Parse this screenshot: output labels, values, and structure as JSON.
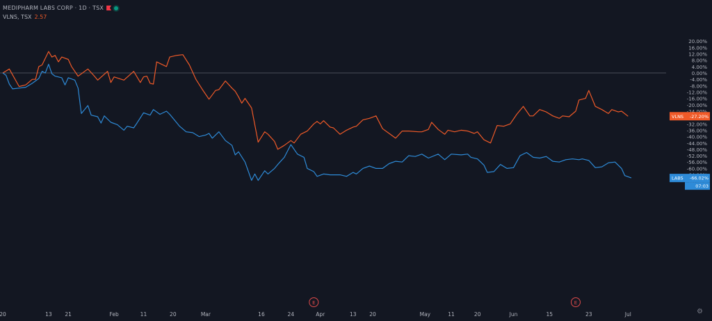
{
  "legend": {
    "title": "MEDIPHARM LABS CORP · 1D · TSX",
    "compare_symbol": "VLNS, TSX",
    "compare_value": "2.57"
  },
  "colors": {
    "background": "#131722",
    "labs": "#2e8bd8",
    "vlns": "#f05a28",
    "axis_text": "#b2b5be",
    "zero_line": "#5d606b"
  },
  "chart_data": {
    "type": "line",
    "title": "",
    "xlabel": "",
    "ylabel": "",
    "ylim": [
      -74,
      22
    ],
    "y_ticks": [
      20,
      16,
      12,
      8,
      4,
      0,
      -4,
      -8,
      -12,
      -16,
      -20,
      -24,
      -28,
      -32,
      -36,
      -40,
      -44,
      -48,
      -52,
      -56,
      -60,
      -64,
      -68,
      -72
    ],
    "x_ticks": [
      "20",
      "13",
      "21",
      "Feb",
      "11",
      "20",
      "Mar",
      "16",
      "24",
      "Apr",
      "13",
      "20",
      "May",
      "11",
      "20",
      "Jun",
      "15",
      "23",
      "Jul"
    ],
    "x_tick_index": [
      0,
      14,
      20,
      34,
      43,
      52,
      62,
      79,
      88,
      97,
      107,
      113,
      129,
      137,
      145,
      156,
      167,
      179,
      191
    ],
    "zero_line": 0,
    "events": [
      {
        "label": "E",
        "index": 95
      },
      {
        "label": "E",
        "index": 175
      }
    ],
    "last_value_badges": {
      "VLNS": {
        "label": "VLNS",
        "value": "-27.20%"
      },
      "LABS": {
        "label": "LABS",
        "value": "-66.02%",
        "countdown": "07:03"
      }
    },
    "series": [
      {
        "name": "VLNS",
        "values": [
          [
            0,
            0.0
          ],
          [
            2,
            2.5
          ],
          [
            5,
            -8.5
          ],
          [
            7,
            -7.5
          ],
          [
            9,
            -4.0
          ],
          [
            10,
            -4.0
          ],
          [
            11,
            4.0
          ],
          [
            12,
            5.0
          ],
          [
            14,
            13.5
          ],
          [
            15,
            10.0
          ],
          [
            16,
            11.0
          ],
          [
            17,
            7.0
          ],
          [
            18,
            10.0
          ],
          [
            20,
            8.5
          ],
          [
            21,
            4.0
          ],
          [
            23,
            -2.0
          ],
          [
            26,
            2.5
          ],
          [
            28,
            -2.0
          ],
          [
            29,
            -4.5
          ],
          [
            32,
            1.0
          ],
          [
            33,
            -6.0
          ],
          [
            34,
            -2.5
          ],
          [
            37,
            -4.5
          ],
          [
            40,
            1.0
          ],
          [
            42,
            -6.0
          ],
          [
            43,
            -2.5
          ],
          [
            44,
            -2.0
          ],
          [
            45,
            -6.5
          ],
          [
            46,
            -7.0
          ],
          [
            47,
            7.0
          ],
          [
            48,
            6.0
          ],
          [
            50,
            4.0
          ],
          [
            51,
            10.0
          ],
          [
            53,
            11.0
          ],
          [
            55,
            11.5
          ],
          [
            57,
            5.0
          ],
          [
            59,
            -4.0
          ],
          [
            61,
            -10.5
          ],
          [
            63,
            -16.5
          ],
          [
            65,
            -11.0
          ],
          [
            66,
            -10.5
          ],
          [
            68,
            -5.0
          ],
          [
            70,
            -9.5
          ],
          [
            71,
            -11.5
          ],
          [
            72,
            -15.0
          ],
          [
            73,
            -19.0
          ],
          [
            74,
            -16.0
          ],
          [
            76,
            -22.0
          ],
          [
            78,
            -43.5
          ],
          [
            80,
            -37.0
          ],
          [
            81,
            -38.5
          ],
          [
            83,
            -43.0
          ],
          [
            84,
            -48.0
          ],
          [
            86,
            -45.5
          ],
          [
            88,
            -42.5
          ],
          [
            89,
            -44.0
          ],
          [
            91,
            -38.5
          ],
          [
            93,
            -36.5
          ],
          [
            95,
            -32.0
          ],
          [
            96,
            -30.5
          ],
          [
            97,
            -32.0
          ],
          [
            98,
            -30.0
          ],
          [
            100,
            -34.0
          ],
          [
            101,
            -34.5
          ],
          [
            103,
            -38.5
          ],
          [
            105,
            -36.0
          ],
          [
            107,
            -34.0
          ],
          [
            108,
            -33.5
          ],
          [
            110,
            -29.5
          ],
          [
            112,
            -28.5
          ],
          [
            114,
            -27.0
          ],
          [
            116,
            -35.0
          ],
          [
            118,
            -38.0
          ],
          [
            120,
            -41.0
          ],
          [
            122,
            -36.5
          ],
          [
            124,
            -36.5
          ],
          [
            127,
            -37.0
          ],
          [
            128,
            -37.0
          ],
          [
            130,
            -35.5
          ],
          [
            131,
            -31.0
          ],
          [
            133,
            -35.5
          ],
          [
            135,
            -38.5
          ],
          [
            136,
            -36.0
          ],
          [
            138,
            -37.0
          ],
          [
            140,
            -36.0
          ],
          [
            142,
            -36.5
          ],
          [
            144,
            -38.0
          ],
          [
            145,
            -37.0
          ],
          [
            147,
            -42.0
          ],
          [
            149,
            -44.0
          ],
          [
            151,
            -33.0
          ],
          [
            153,
            -33.5
          ],
          [
            155,
            -32.0
          ],
          [
            157,
            -26.0
          ],
          [
            159,
            -21.0
          ],
          [
            161,
            -27.0
          ],
          [
            162,
            -27.0
          ],
          [
            164,
            -23.0
          ],
          [
            166,
            -24.5
          ],
          [
            168,
            -27.0
          ],
          [
            170,
            -28.5
          ],
          [
            171,
            -27.0
          ],
          [
            173,
            -27.5
          ],
          [
            175,
            -24.0
          ],
          [
            176,
            -17.0
          ],
          [
            178,
            -16.0
          ],
          [
            179,
            -11.0
          ],
          [
            181,
            -21.0
          ],
          [
            183,
            -23.0
          ],
          [
            185,
            -25.5
          ],
          [
            186,
            -23.0
          ],
          [
            188,
            -24.5
          ],
          [
            189,
            -24.0
          ],
          [
            191,
            -27.2
          ]
        ]
      },
      {
        "name": "LABS",
        "values": [
          [
            0,
            0.0
          ],
          [
            1,
            -1.5
          ],
          [
            2,
            -7.0
          ],
          [
            3,
            -10.0
          ],
          [
            5,
            -9.5
          ],
          [
            7,
            -9.0
          ],
          [
            9,
            -6.5
          ],
          [
            11,
            -3.5
          ],
          [
            12,
            1.0
          ],
          [
            13,
            0.0
          ],
          [
            14,
            5.5
          ],
          [
            15,
            -0.5
          ],
          [
            16,
            -2.0
          ],
          [
            18,
            -3.0
          ],
          [
            19,
            -7.5
          ],
          [
            20,
            -3.0
          ],
          [
            22,
            -4.5
          ],
          [
            23,
            -9.5
          ],
          [
            24,
            -25.5
          ],
          [
            26,
            -20.5
          ],
          [
            27,
            -26.5
          ],
          [
            29,
            -27.5
          ],
          [
            30,
            -31.5
          ],
          [
            31,
            -27.0
          ],
          [
            33,
            -31.0
          ],
          [
            35,
            -32.5
          ],
          [
            37,
            -36.0
          ],
          [
            38,
            -33.5
          ],
          [
            40,
            -34.5
          ],
          [
            41,
            -31.5
          ],
          [
            43,
            -25.0
          ],
          [
            45,
            -26.5
          ],
          [
            46,
            -23.0
          ],
          [
            48,
            -26.0
          ],
          [
            50,
            -24.0
          ],
          [
            51,
            -26.0
          ],
          [
            54,
            -33.5
          ],
          [
            56,
            -37.0
          ],
          [
            58,
            -37.5
          ],
          [
            60,
            -40.0
          ],
          [
            62,
            -39.0
          ],
          [
            63,
            -38.0
          ],
          [
            64,
            -41.0
          ],
          [
            66,
            -37.0
          ],
          [
            68,
            -42.5
          ],
          [
            70,
            -45.5
          ],
          [
            71,
            -51.5
          ],
          [
            72,
            -49.5
          ],
          [
            74,
            -56.0
          ],
          [
            76,
            -67.5
          ],
          [
            77,
            -63.5
          ],
          [
            78,
            -67.5
          ],
          [
            80,
            -61.5
          ],
          [
            81,
            -63.5
          ],
          [
            83,
            -60.0
          ],
          [
            84,
            -57.5
          ],
          [
            86,
            -53.0
          ],
          [
            88,
            -45.0
          ],
          [
            90,
            -51.0
          ],
          [
            92,
            -53.0
          ],
          [
            93,
            -60.0
          ],
          [
            95,
            -62.0
          ],
          [
            96,
            -65.0
          ],
          [
            98,
            -63.5
          ],
          [
            100,
            -64.0
          ],
          [
            103,
            -64.0
          ],
          [
            105,
            -65.0
          ],
          [
            107,
            -62.5
          ],
          [
            108,
            -63.5
          ],
          [
            110,
            -60.0
          ],
          [
            112,
            -58.5
          ],
          [
            114,
            -60.0
          ],
          [
            116,
            -60.0
          ],
          [
            118,
            -57.0
          ],
          [
            120,
            -55.5
          ],
          [
            122,
            -56.0
          ],
          [
            124,
            -52.0
          ],
          [
            126,
            -52.5
          ],
          [
            128,
            -51.0
          ],
          [
            130,
            -53.5
          ],
          [
            133,
            -51.0
          ],
          [
            135,
            -54.5
          ],
          [
            137,
            -51.0
          ],
          [
            140,
            -51.5
          ],
          [
            142,
            -51.0
          ],
          [
            143,
            -53.0
          ],
          [
            145,
            -54.0
          ],
          [
            147,
            -58.0
          ],
          [
            148,
            -62.5
          ],
          [
            150,
            -62.0
          ],
          [
            152,
            -57.5
          ],
          [
            154,
            -60.0
          ],
          [
            156,
            -59.5
          ],
          [
            158,
            -52.0
          ],
          [
            160,
            -50.0
          ],
          [
            162,
            -53.0
          ],
          [
            164,
            -53.5
          ],
          [
            166,
            -52.5
          ],
          [
            168,
            -55.5
          ],
          [
            170,
            -56.0
          ],
          [
            172,
            -54.5
          ],
          [
            174,
            -54.0
          ],
          [
            176,
            -54.5
          ],
          [
            177,
            -54.0
          ],
          [
            179,
            -55.0
          ],
          [
            181,
            -59.5
          ],
          [
            183,
            -59.0
          ],
          [
            185,
            -56.5
          ],
          [
            187,
            -56.0
          ],
          [
            188,
            -58.0
          ],
          [
            189,
            -60.0
          ],
          [
            190,
            -64.5
          ],
          [
            192,
            -66.0
          ]
        ]
      }
    ]
  }
}
